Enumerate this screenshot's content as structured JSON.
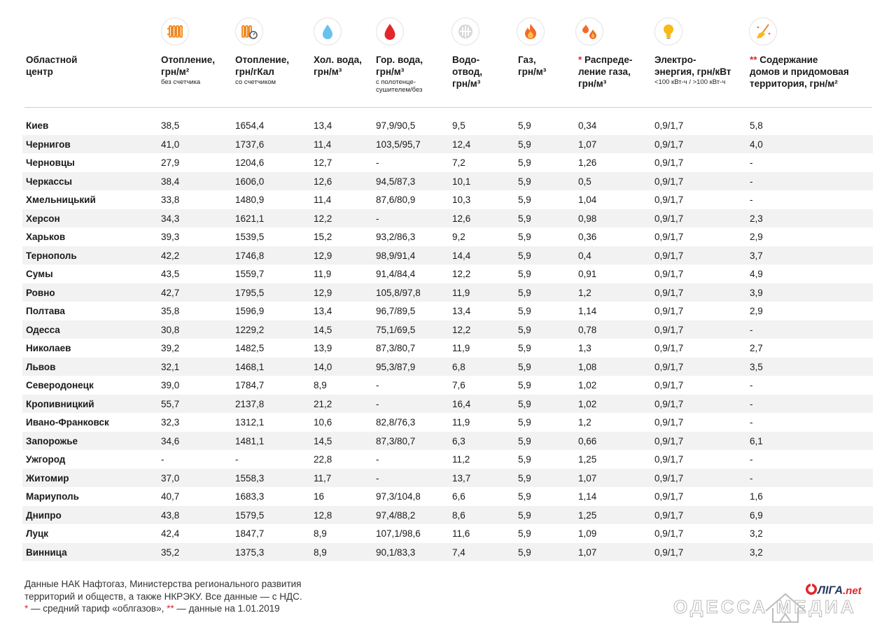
{
  "columns": [
    {
      "id": "city",
      "title": "Областной\nцентр",
      "sub": "",
      "icon": null
    },
    {
      "id": "heat",
      "title": "Отопление,\nгрн/м²",
      "sub": "без счетчика",
      "icon": "radiator-icon"
    },
    {
      "id": "heat_meter",
      "title": "Отопление,\nгрн/гКал",
      "sub": "со счетчиком",
      "icon": "radiator-meter-icon"
    },
    {
      "id": "cold_water",
      "title": "Хол. вода,\nгрн/м³",
      "sub": "",
      "icon": "water-drop-icon"
    },
    {
      "id": "hot_water",
      "title": "Гор. вода,\nгрн/м³",
      "sub": "с полотенце-\nсушителем/без",
      "icon": "hot-water-drop-icon"
    },
    {
      "id": "sewage",
      "title": "Водо-\nотвод,\nгрн/м³",
      "sub": "",
      "icon": "drain-icon"
    },
    {
      "id": "gas",
      "title": "Газ,\nгрн/м³",
      "sub": "",
      "icon": "flame-icon"
    },
    {
      "id": "gas_dist",
      "ast": "*",
      "title": " Распреде-\nление газа,\nгрн/м³",
      "sub": "",
      "icon": "flames-icon"
    },
    {
      "id": "electricity",
      "title": "Электро-\nэнергия, грн/кВт",
      "sub": "<100 кВт-ч / >100 кВт-ч",
      "icon": "lightbulb-icon"
    },
    {
      "id": "maintenance",
      "ast": "**",
      "title": " Содержание\nдомов и придомовая\nтерритория, грн/м²",
      "sub": "",
      "icon": "broom-icon"
    }
  ],
  "rows": [
    [
      "Киев",
      "38,5",
      "1654,4",
      "13,4",
      "97,9/90,5",
      "9,5",
      "5,9",
      "0,34",
      "0,9/1,7",
      "5,8"
    ],
    [
      "Чернигов",
      "41,0",
      "1737,6",
      "11,4",
      "103,5/95,7",
      "12,4",
      "5,9",
      "1,07",
      "0,9/1,7",
      "4,0"
    ],
    [
      "Черновцы",
      "27,9",
      "1204,6",
      "12,7",
      "-",
      "7,2",
      "5,9",
      "1,26",
      "0,9/1,7",
      "-"
    ],
    [
      "Черкассы",
      "38,4",
      "1606,0",
      "12,6",
      "94,5/87,3",
      "10,1",
      "5,9",
      "0,5",
      "0,9/1,7",
      "-"
    ],
    [
      "Хмельницький",
      "33,8",
      "1480,9",
      "11,4",
      "87,6/80,9",
      "10,3",
      "5,9",
      "1,04",
      "0,9/1,7",
      "-"
    ],
    [
      "Херсон",
      "34,3",
      "1621,1",
      "12,2",
      "-",
      "12,6",
      "5,9",
      "0,98",
      "0,9/1,7",
      "2,3"
    ],
    [
      "Харьков",
      "39,3",
      "1539,5",
      "15,2",
      "93,2/86,3",
      "9,2",
      "5,9",
      "0,36",
      "0,9/1,7",
      "2,9"
    ],
    [
      "Тернополь",
      "42,2",
      "1746,8",
      "12,9",
      "98,9/91,4",
      "14,4",
      "5,9",
      "0,4",
      "0,9/1,7",
      "3,7"
    ],
    [
      "Сумы",
      "43,5",
      "1559,7",
      "11,9",
      "91,4/84,4",
      "12,2",
      "5,9",
      "0,91",
      "0,9/1,7",
      "4,9"
    ],
    [
      "Ровно",
      "42,7",
      "1795,5",
      "12,9",
      "105,8/97,8",
      "11,9",
      "5,9",
      "1,2",
      "0,9/1,7",
      "3,9"
    ],
    [
      "Полтава",
      "35,8",
      "1596,9",
      "13,4",
      "96,7/89,5",
      "13,4",
      "5,9",
      "1,14",
      "0,9/1,7",
      "2,9"
    ],
    [
      "Одесса",
      "30,8",
      "1229,2",
      "14,5",
      "75,1/69,5",
      "12,2",
      "5,9",
      "0,78",
      "0,9/1,7",
      "-"
    ],
    [
      "Николаев",
      "39,2",
      "1482,5",
      "13,9",
      "87,3/80,7",
      "11,9",
      "5,9",
      "1,3",
      "0,9/1,7",
      "2,7"
    ],
    [
      "Львов",
      "32,1",
      "1468,1",
      "14,0",
      "95,3/87,9",
      "6,8",
      "5,9",
      "1,08",
      "0,9/1,7",
      "3,5"
    ],
    [
      "Северодонецк",
      "39,0",
      "1784,7",
      "8,9",
      "-",
      "7,6",
      "5,9",
      "1,02",
      "0,9/1,7",
      "-"
    ],
    [
      "Кропивницкий",
      "55,7",
      "2137,8",
      "21,2",
      "-",
      "16,4",
      "5,9",
      "1,02",
      "0,9/1,7",
      "-"
    ],
    [
      "Ивано-Франковск",
      "32,3",
      "1312,1",
      "10,6",
      "82,8/76,3",
      "11,9",
      "5,9",
      "1,2",
      "0,9/1,7",
      "-"
    ],
    [
      "Запорожье",
      "34,6",
      "1481,1",
      "14,5",
      "87,3/80,7",
      "6,3",
      "5,9",
      "0,66",
      "0,9/1,7",
      "6,1"
    ],
    [
      "Ужгород",
      "-",
      "-",
      "22,8",
      "-",
      "11,2",
      "5,9",
      "1,25",
      "0,9/1,7",
      "-"
    ],
    [
      "Житомир",
      "37,0",
      "1558,3",
      "11,7",
      "-",
      "13,7",
      "5,9",
      "1,07",
      "0,9/1,7",
      "-"
    ],
    [
      "Мариуполь",
      "40,7",
      "1683,3",
      "16",
      "97,3/104,8",
      "6,6",
      "5,9",
      "1,14",
      "0,9/1,7",
      "1,6"
    ],
    [
      "Днипро",
      "43,8",
      "1579,5",
      "12,8",
      "97,4/88,2",
      "8,6",
      "5,9",
      "1,25",
      "0,9/1,7",
      "6,9"
    ],
    [
      "Луцк",
      "42,4",
      "1847,7",
      "8,9",
      "107,1/98,6",
      "11,6",
      "5,9",
      "1,09",
      "0,9/1,7",
      "3,2"
    ],
    [
      "Винница",
      "35,2",
      "1375,3",
      "8,9",
      "90,1/83,3",
      "7,4",
      "5,9",
      "1,07",
      "0,9/1,7",
      "3,2"
    ]
  ],
  "footer": {
    "line1": "Данные НАК Нафтогаз, Министерства регионального развития",
    "line2": "территорий и обществ, а также НКРЭКУ. Все данные — с НДС.",
    "ast1": "*",
    "note1": " — средний тариф «облгазов», ",
    "ast2": "**",
    "note2": " — данные на 1.01.2019"
  },
  "logo": {
    "name": "ЛIГА",
    "suffix": ".net"
  },
  "watermark": "ОДЕССА    МЕДИА",
  "colors": {
    "accent_red": "#e3262b",
    "icon_orange": "#f08a24",
    "icon_blue": "#67c2ee",
    "row_stripe": "#f2f2f2",
    "logo_blue": "#23355e"
  }
}
